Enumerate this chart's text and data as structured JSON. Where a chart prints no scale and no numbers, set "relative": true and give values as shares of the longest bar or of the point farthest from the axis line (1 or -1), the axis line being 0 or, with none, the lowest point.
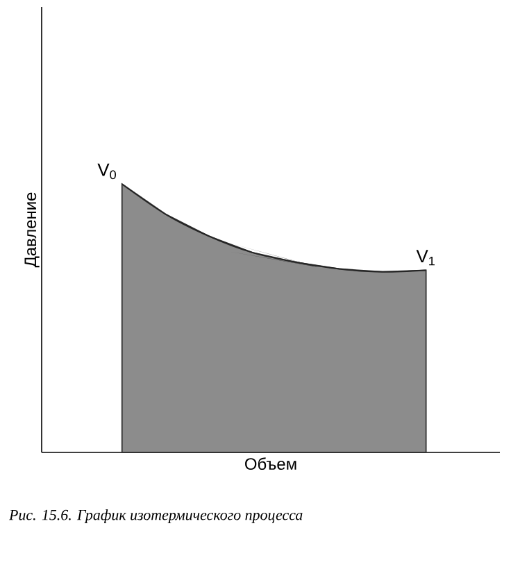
{
  "chart_data": {
    "type": "area",
    "relative": true,
    "xlabel": "Объем",
    "ylabel": "Давление",
    "color": "#8c8c8c",
    "categories": [
      null,
      null,
      null,
      null,
      null,
      null,
      null,
      null
    ],
    "values": [
      1,
      0.888,
      0.806,
      0.745,
      0.709,
      0.684,
      0.673,
      0.679
    ],
    "annotations": [
      "V$_{0}$",
      "V$_{1}$",
      "Рис. 15.6. График изотермического процесса"
    ]
  }
}
